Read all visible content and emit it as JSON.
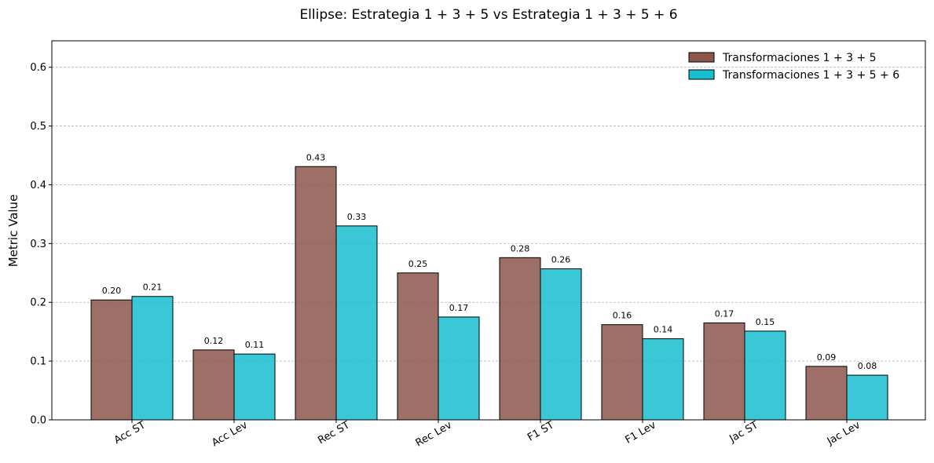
{
  "chart_data": {
    "type": "bar",
    "title": "Ellipse: Estrategia 1 + 3 + 5 vs Estrategia 1 + 3 + 5 + 6",
    "xlabel": "",
    "ylabel": "Metric Value",
    "categories": [
      "Acc ST",
      "Acc Lev",
      "Rec ST",
      "Rec Lev",
      "F1 ST",
      "F1 Lev",
      "Jac ST",
      "Jac Lev"
    ],
    "series": [
      {
        "name": "Transformaciones 1 + 3 + 5",
        "color": "#8c564b",
        "values": [
          0.204,
          0.119,
          0.431,
          0.25,
          0.276,
          0.162,
          0.165,
          0.091
        ],
        "labels": [
          "0.20",
          "0.12",
          "0.43",
          "0.25",
          "0.28",
          "0.16",
          "0.17",
          "0.09"
        ]
      },
      {
        "name": "Transformaciones 1 + 3 + 5 + 6",
        "color": "#17becf",
        "values": [
          0.21,
          0.112,
          0.33,
          0.175,
          0.257,
          0.138,
          0.151,
          0.076
        ],
        "labels": [
          "0.21",
          "0.11",
          "0.33",
          "0.17",
          "0.26",
          "0.14",
          "0.15",
          "0.08"
        ]
      }
    ],
    "ylim": [
      0,
      0.645
    ],
    "yticks": [
      0.0,
      0.1,
      0.2,
      0.3,
      0.4,
      0.5,
      0.6
    ],
    "ytick_labels": [
      "0.0",
      "0.1",
      "0.2",
      "0.3",
      "0.4",
      "0.5",
      "0.6"
    ],
    "grid": "y dashed",
    "legend_position": "upper right",
    "xtick_rotation": "30 degrees"
  }
}
